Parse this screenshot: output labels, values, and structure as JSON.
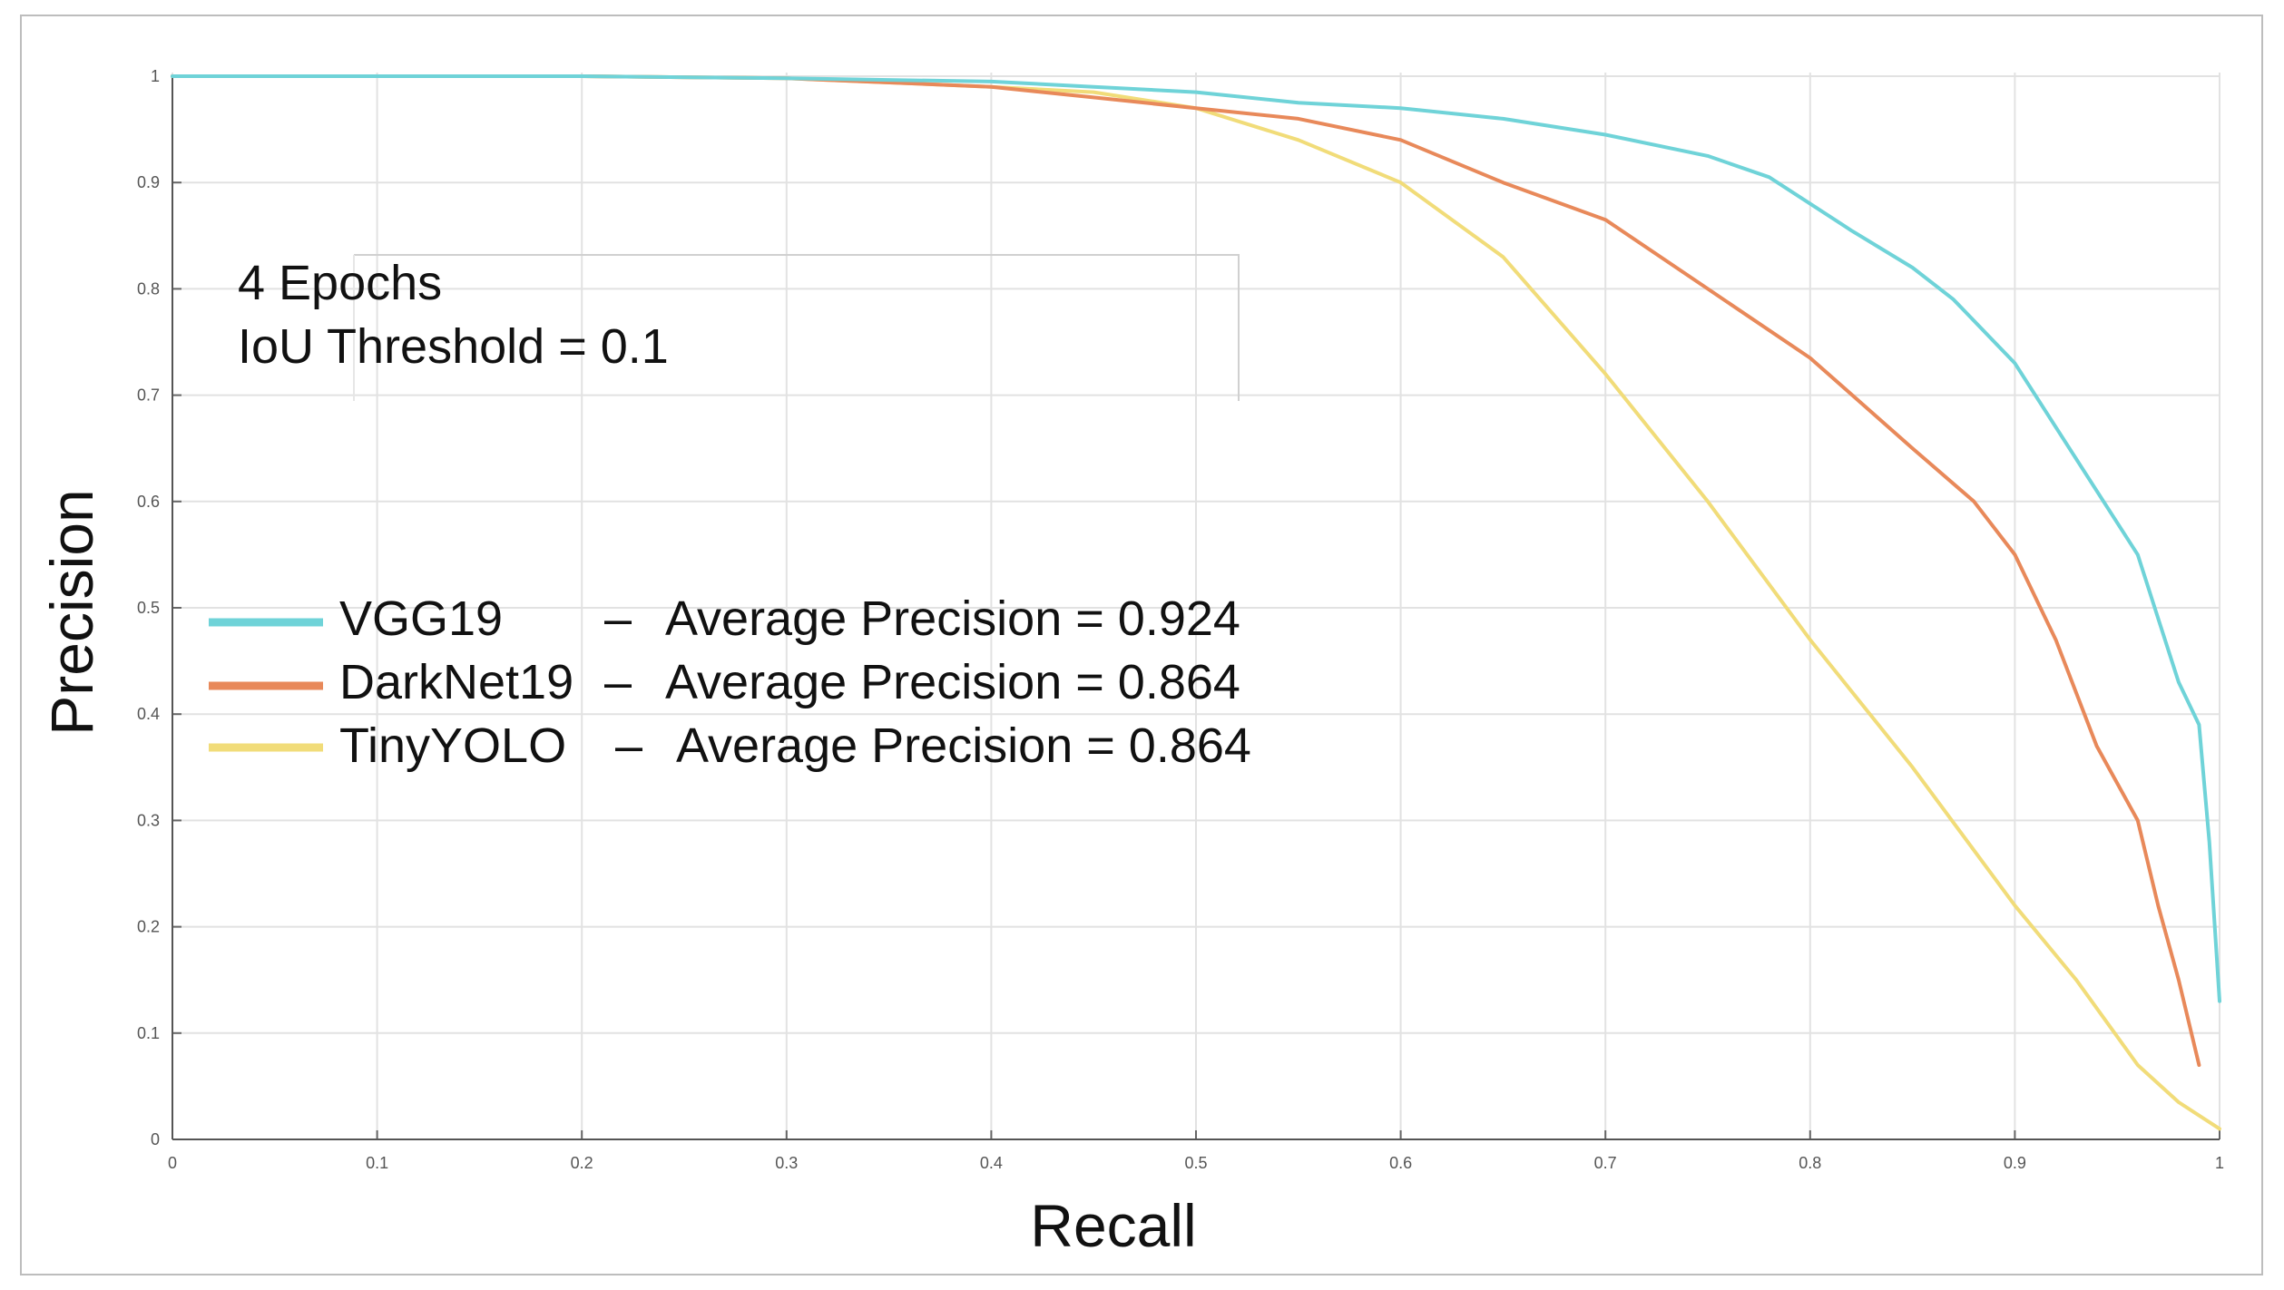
{
  "chart_data": {
    "type": "line",
    "title": "",
    "xlabel": "Recall",
    "ylabel": "Precision",
    "xlim": [
      0,
      1
    ],
    "ylim": [
      0,
      1
    ],
    "grid": true,
    "x_ticks": [
      "0",
      "0.1",
      "0.2",
      "0.3",
      "0.4",
      "0.5",
      "0.6",
      "0.7",
      "0.8",
      "0.9",
      "1"
    ],
    "y_ticks": [
      "0",
      "0.1",
      "0.2",
      "0.3",
      "0.4",
      "0.5",
      "0.6",
      "0.7",
      "0.8",
      "0.9",
      "1"
    ],
    "annotations": [
      "4 Epochs",
      "IoU Threshold = 0.1"
    ],
    "legend_placement": "center-left",
    "series": [
      {
        "name": "VGG19",
        "legend_label": "VGG19",
        "legend_metric": "Average Precision = 0.924",
        "color": "#6fd3d8",
        "x": [
          0,
          0.1,
          0.2,
          0.3,
          0.4,
          0.45,
          0.5,
          0.55,
          0.6,
          0.65,
          0.7,
          0.75,
          0.78,
          0.8,
          0.82,
          0.85,
          0.87,
          0.9,
          0.92,
          0.94,
          0.96,
          0.97,
          0.98,
          0.99,
          0.995,
          1.0
        ],
        "y": [
          1.0,
          1.0,
          1.0,
          0.998,
          0.995,
          0.99,
          0.985,
          0.975,
          0.97,
          0.96,
          0.945,
          0.925,
          0.905,
          0.88,
          0.855,
          0.82,
          0.79,
          0.73,
          0.67,
          0.61,
          0.55,
          0.49,
          0.43,
          0.39,
          0.28,
          0.13
        ]
      },
      {
        "name": "DarkNet19",
        "legend_label": "DarkNet19",
        "legend_metric": "Average Precision = 0.864",
        "color": "#e8895a",
        "x": [
          0,
          0.1,
          0.2,
          0.3,
          0.4,
          0.45,
          0.5,
          0.55,
          0.6,
          0.65,
          0.7,
          0.75,
          0.8,
          0.85,
          0.88,
          0.9,
          0.92,
          0.94,
          0.96,
          0.97,
          0.98,
          0.99
        ],
        "y": [
          1.0,
          1.0,
          1.0,
          0.998,
          0.99,
          0.98,
          0.97,
          0.96,
          0.94,
          0.9,
          0.865,
          0.8,
          0.735,
          0.65,
          0.6,
          0.55,
          0.47,
          0.37,
          0.3,
          0.22,
          0.15,
          0.07
        ]
      },
      {
        "name": "TinyYOLO",
        "legend_label": "TinyYOLO",
        "legend_metric": "Average Precision = 0.864",
        "color": "#f1dc79",
        "x": [
          0,
          0.1,
          0.2,
          0.3,
          0.4,
          0.45,
          0.5,
          0.55,
          0.6,
          0.65,
          0.7,
          0.75,
          0.8,
          0.85,
          0.9,
          0.93,
          0.96,
          0.98,
          1.0
        ],
        "y": [
          1.0,
          1.0,
          1.0,
          0.998,
          0.99,
          0.985,
          0.97,
          0.94,
          0.9,
          0.83,
          0.72,
          0.6,
          0.47,
          0.35,
          0.22,
          0.15,
          0.07,
          0.035,
          0.01
        ]
      }
    ]
  }
}
